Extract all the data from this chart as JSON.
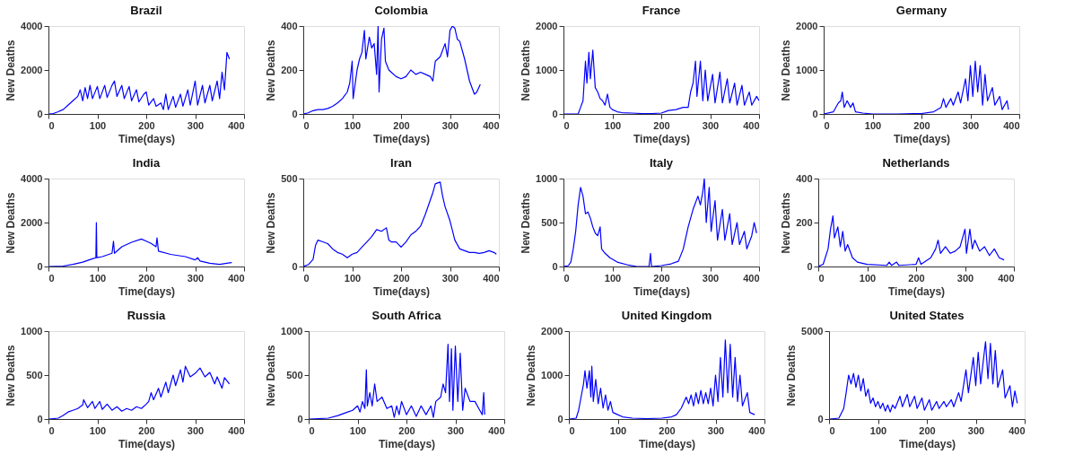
{
  "chart_data": [
    {
      "type": "line",
      "title": "Brazil",
      "xlabel": "Time(days)",
      "ylabel": "New Deaths",
      "color": "#0000ff",
      "xlim": [
        0,
        400
      ],
      "xticks": [
        0,
        100,
        200,
        300,
        400
      ],
      "ylim": [
        0,
        4000
      ],
      "yticks": [
        0,
        2000,
        4000
      ],
      "grid": false,
      "x": [
        0,
        10,
        20,
        30,
        40,
        50,
        60,
        65,
        70,
        75,
        80,
        85,
        90,
        100,
        105,
        115,
        120,
        130,
        135,
        140,
        150,
        155,
        165,
        170,
        180,
        185,
        195,
        200,
        205,
        215,
        220,
        230,
        235,
        240,
        245,
        255,
        260,
        270,
        275,
        285,
        290,
        300,
        305,
        315,
        320,
        330,
        335,
        345,
        350,
        355,
        360,
        365,
        370
      ],
      "values": [
        0,
        20,
        100,
        200,
        400,
        600,
        800,
        1100,
        600,
        1200,
        700,
        1300,
        700,
        1250,
        700,
        1300,
        750,
        1300,
        1500,
        800,
        1300,
        700,
        1250,
        600,
        1100,
        550,
        900,
        1000,
        400,
        700,
        350,
        500,
        200,
        900,
        200,
        800,
        300,
        900,
        350,
        1100,
        400,
        1500,
        400,
        1300,
        500,
        1300,
        600,
        1500,
        700,
        1900,
        1100,
        2800,
        2500
      ]
    },
    {
      "type": "line",
      "title": "Colombia",
      "xlabel": "Time(days)",
      "ylabel": "New Deaths",
      "color": "#0000ff",
      "xlim": [
        0,
        400
      ],
      "xticks": [
        0,
        100,
        200,
        300,
        400
      ],
      "ylim": [
        0,
        400
      ],
      "yticks": [
        0,
        200,
        400
      ],
      "grid": false,
      "x": [
        0,
        10,
        20,
        30,
        40,
        50,
        60,
        70,
        80,
        90,
        95,
        100,
        102,
        110,
        115,
        120,
        125,
        128,
        135,
        140,
        145,
        150,
        153,
        155,
        160,
        165,
        168,
        175,
        180,
        190,
        200,
        210,
        220,
        230,
        240,
        250,
        260,
        265,
        270,
        280,
        290,
        295,
        300,
        305,
        310,
        315,
        320,
        330,
        340,
        350,
        355,
        362
      ],
      "values": [
        0,
        5,
        15,
        20,
        20,
        25,
        35,
        50,
        70,
        100,
        140,
        240,
        70,
        200,
        250,
        280,
        380,
        250,
        350,
        300,
        320,
        180,
        400,
        100,
        340,
        390,
        240,
        200,
        190,
        170,
        160,
        170,
        200,
        180,
        190,
        180,
        170,
        150,
        240,
        260,
        320,
        260,
        380,
        400,
        390,
        340,
        330,
        250,
        150,
        90,
        100,
        135
      ]
    },
    {
      "type": "line",
      "title": "France",
      "xlabel": "Time(days)",
      "ylabel": "New Deaths",
      "color": "#0000ff",
      "xlim": [
        0,
        400
      ],
      "xticks": [
        0,
        100,
        200,
        300,
        400
      ],
      "ylim": [
        0,
        2000
      ],
      "yticks": [
        0,
        1000,
        2000
      ],
      "grid": false,
      "x": [
        0,
        30,
        35,
        40,
        45,
        48,
        52,
        55,
        60,
        65,
        70,
        75,
        80,
        85,
        90,
        95,
        100,
        110,
        120,
        140,
        160,
        180,
        200,
        215,
        230,
        245,
        255,
        260,
        265,
        270,
        273,
        280,
        285,
        290,
        295,
        305,
        310,
        320,
        325,
        335,
        340,
        350,
        355,
        365,
        370,
        380,
        385,
        395,
        400
      ],
      "values": [
        0,
        0,
        150,
        300,
        1200,
        700,
        1400,
        800,
        1450,
        600,
        500,
        350,
        300,
        200,
        450,
        150,
        100,
        50,
        30,
        20,
        10,
        10,
        20,
        80,
        100,
        150,
        150,
        500,
        700,
        1200,
        400,
        1200,
        300,
        1000,
        300,
        900,
        250,
        950,
        250,
        800,
        250,
        700,
        200,
        650,
        200,
        500,
        200,
        400,
        300
      ]
    },
    {
      "type": "line",
      "title": "Germany",
      "xlabel": "Time(days)",
      "ylabel": "New Deaths",
      "color": "#0000ff",
      "xlim": [
        0,
        400
      ],
      "xticks": [
        0,
        100,
        200,
        300,
        400
      ],
      "ylim": [
        0,
        2000
      ],
      "yticks": [
        0,
        1000,
        2000
      ],
      "grid": false,
      "x": [
        0,
        20,
        30,
        35,
        38,
        42,
        48,
        55,
        60,
        65,
        80,
        100,
        150,
        200,
        225,
        240,
        245,
        250,
        260,
        265,
        275,
        280,
        290,
        295,
        300,
        305,
        310,
        315,
        320,
        325,
        330,
        335,
        345,
        350,
        360,
        365,
        375,
        378
      ],
      "values": [
        0,
        50,
        250,
        300,
        500,
        150,
        300,
        150,
        250,
        50,
        20,
        0,
        0,
        10,
        50,
        150,
        350,
        150,
        350,
        200,
        500,
        250,
        800,
        300,
        1100,
        400,
        1200,
        500,
        1100,
        200,
        900,
        300,
        600,
        200,
        400,
        100,
        300,
        100
      ]
    },
    {
      "type": "line",
      "title": "India",
      "xlabel": "Time(days)",
      "ylabel": "New Deaths",
      "color": "#0000ff",
      "xlim": [
        0,
        400
      ],
      "xticks": [
        0,
        100,
        200,
        300,
        400
      ],
      "ylim": [
        0,
        4000
      ],
      "yticks": [
        0,
        2000,
        4000
      ],
      "grid": false,
      "x": [
        0,
        30,
        50,
        70,
        90,
        97,
        98,
        99,
        110,
        130,
        133,
        135,
        150,
        170,
        190,
        200,
        210,
        220,
        222,
        225,
        250,
        280,
        300,
        305,
        310,
        330,
        350,
        375
      ],
      "values": [
        0,
        20,
        100,
        200,
        350,
        400,
        2000,
        400,
        450,
        600,
        1150,
        600,
        900,
        1100,
        1250,
        1150,
        1050,
        900,
        1300,
        700,
        550,
        450,
        300,
        400,
        250,
        150,
        100,
        180
      ]
    },
    {
      "type": "line",
      "title": "Iran",
      "xlabel": "Time(days)",
      "ylabel": "New Deaths",
      "color": "#0000ff",
      "xlim": [
        0,
        400
      ],
      "xticks": [
        0,
        100,
        200,
        300,
        400
      ],
      "ylim": [
        0,
        500
      ],
      "yticks": [
        0,
        500
      ],
      "grid": false,
      "x": [
        0,
        10,
        20,
        25,
        30,
        40,
        50,
        60,
        70,
        80,
        90,
        100,
        110,
        120,
        130,
        140,
        150,
        160,
        170,
        175,
        180,
        190,
        200,
        210,
        220,
        230,
        240,
        250,
        260,
        265,
        270,
        280,
        285,
        290,
        300,
        310,
        320,
        330,
        340,
        350,
        360,
        370,
        380,
        390,
        395
      ],
      "values": [
        0,
        10,
        40,
        120,
        150,
        140,
        130,
        100,
        80,
        70,
        50,
        70,
        80,
        110,
        140,
        170,
        210,
        200,
        220,
        150,
        140,
        140,
        110,
        140,
        180,
        200,
        230,
        300,
        380,
        420,
        470,
        480,
        400,
        340,
        260,
        150,
        100,
        90,
        80,
        80,
        75,
        80,
        90,
        80,
        70
      ]
    },
    {
      "type": "line",
      "title": "Italy",
      "xlabel": "Time(days)",
      "ylabel": "New Deaths",
      "color": "#0000ff",
      "xlim": [
        0,
        400
      ],
      "xticks": [
        0,
        100,
        200,
        300,
        400
      ],
      "ylim": [
        0,
        1000
      ],
      "yticks": [
        0,
        500,
        1000
      ],
      "grid": false,
      "x": [
        0,
        10,
        15,
        20,
        25,
        30,
        35,
        40,
        45,
        50,
        55,
        60,
        65,
        70,
        75,
        78,
        85,
        95,
        110,
        130,
        150,
        175,
        178,
        180,
        200,
        220,
        235,
        245,
        255,
        265,
        275,
        280,
        285,
        288,
        292,
        298,
        302,
        310,
        315,
        325,
        330,
        340,
        345,
        355,
        360,
        370,
        375,
        385,
        390,
        395
      ],
      "values": [
        0,
        10,
        50,
        200,
        400,
        700,
        900,
        800,
        600,
        620,
        550,
        450,
        380,
        350,
        450,
        200,
        150,
        100,
        50,
        20,
        0,
        0,
        150,
        0,
        10,
        30,
        60,
        200,
        450,
        650,
        800,
        700,
        850,
        1000,
        500,
        900,
        400,
        750,
        300,
        650,
        300,
        600,
        250,
        500,
        250,
        400,
        200,
        350,
        500,
        380
      ]
    },
    {
      "type": "line",
      "title": "Netherlands",
      "xlabel": "Time(days)",
      "ylabel": "New Deaths",
      "color": "#0000ff",
      "xlim": [
        0,
        400
      ],
      "xticks": [
        0,
        100,
        200,
        300,
        400
      ],
      "ylim": [
        0,
        400
      ],
      "yticks": [
        0,
        200,
        400
      ],
      "grid": false,
      "x": [
        0,
        10,
        20,
        25,
        30,
        33,
        40,
        45,
        50,
        55,
        60,
        70,
        80,
        100,
        140,
        145,
        150,
        160,
        165,
        200,
        205,
        210,
        230,
        240,
        245,
        250,
        260,
        270,
        280,
        290,
        300,
        303,
        310,
        315,
        320,
        330,
        340,
        350,
        360,
        370,
        380
      ],
      "values": [
        0,
        10,
        80,
        170,
        230,
        130,
        180,
        90,
        160,
        70,
        100,
        40,
        20,
        10,
        5,
        20,
        5,
        20,
        5,
        10,
        40,
        10,
        40,
        80,
        120,
        60,
        90,
        60,
        70,
        90,
        170,
        60,
        170,
        80,
        120,
        70,
        90,
        50,
        80,
        40,
        30
      ]
    },
    {
      "type": "line",
      "title": "Russia",
      "xlabel": "Time(days)",
      "ylabel": "New Deaths",
      "color": "#0000ff",
      "xlim": [
        0,
        400
      ],
      "xticks": [
        0,
        100,
        200,
        300,
        400
      ],
      "ylim": [
        0,
        1000
      ],
      "yticks": [
        0,
        500,
        1000
      ],
      "grid": false,
      "x": [
        0,
        20,
        30,
        40,
        50,
        60,
        70,
        72,
        80,
        90,
        95,
        105,
        110,
        120,
        130,
        140,
        150,
        160,
        170,
        180,
        190,
        200,
        205,
        210,
        215,
        225,
        230,
        240,
        245,
        255,
        260,
        270,
        275,
        280,
        290,
        300,
        310,
        320,
        330,
        340,
        345,
        355,
        360,
        370
      ],
      "values": [
        0,
        10,
        40,
        80,
        100,
        120,
        160,
        220,
        130,
        200,
        120,
        200,
        110,
        170,
        100,
        140,
        90,
        120,
        100,
        140,
        120,
        170,
        200,
        300,
        220,
        350,
        250,
        420,
        300,
        500,
        380,
        560,
        420,
        600,
        480,
        520,
        580,
        480,
        530,
        400,
        480,
        350,
        470,
        400
      ]
    },
    {
      "type": "line",
      "title": "South Africa",
      "xlabel": "Time(days)",
      "ylabel": "New Deaths",
      "color": "#0000ff",
      "xlim": [
        0,
        400
      ],
      "xticks": [
        0,
        100,
        200,
        300,
        400
      ],
      "ylim": [
        0,
        1000
      ],
      "yticks": [
        0,
        500,
        1000
      ],
      "grid": false,
      "x": [
        0,
        40,
        60,
        70,
        80,
        90,
        100,
        105,
        110,
        115,
        118,
        120,
        125,
        130,
        135,
        140,
        150,
        160,
        170,
        175,
        180,
        185,
        190,
        200,
        210,
        220,
        230,
        240,
        250,
        255,
        260,
        270,
        275,
        280,
        285,
        288,
        292,
        295,
        300,
        305,
        310,
        315,
        320,
        330,
        340,
        350,
        355,
        358,
        360
      ],
      "values": [
        0,
        10,
        40,
        60,
        80,
        100,
        150,
        80,
        200,
        120,
        560,
        150,
        300,
        150,
        400,
        200,
        250,
        120,
        150,
        20,
        150,
        50,
        200,
        50,
        150,
        30,
        150,
        50,
        150,
        20,
        200,
        250,
        400,
        300,
        850,
        200,
        800,
        100,
        830,
        200,
        750,
        100,
        350,
        200,
        200,
        100,
        50,
        300,
        50
      ]
    },
    {
      "type": "line",
      "title": "United Kingdom",
      "xlabel": "Time(days)",
      "ylabel": "New Deaths",
      "color": "#0000ff",
      "xlim": [
        0,
        400
      ],
      "xticks": [
        0,
        100,
        200,
        300,
        400
      ],
      "ylim": [
        0,
        2000
      ],
      "yticks": [
        0,
        1000,
        2000
      ],
      "grid": false,
      "x": [
        0,
        15,
        20,
        25,
        30,
        33,
        37,
        42,
        45,
        47,
        50,
        55,
        60,
        65,
        70,
        75,
        80,
        85,
        90,
        100,
        110,
        130,
        160,
        190,
        210,
        220,
        230,
        240,
        245,
        250,
        255,
        260,
        265,
        270,
        275,
        280,
        285,
        290,
        295,
        300,
        305,
        310,
        315,
        320,
        325,
        330,
        335,
        340,
        345,
        350,
        355,
        365,
        370,
        380
      ],
      "values": [
        0,
        20,
        200,
        500,
        800,
        1100,
        700,
        1100,
        500,
        1200,
        400,
        900,
        350,
        700,
        250,
        550,
        200,
        400,
        150,
        100,
        50,
        20,
        10,
        20,
        50,
        100,
        250,
        500,
        350,
        550,
        300,
        600,
        350,
        650,
        350,
        600,
        350,
        700,
        300,
        1000,
        400,
        1400,
        500,
        1800,
        600,
        1700,
        500,
        1400,
        400,
        1000,
        300,
        600,
        150,
        100
      ]
    },
    {
      "type": "line",
      "title": "United States",
      "xlabel": "Time(days)",
      "ylabel": "New Deaths",
      "color": "#0000ff",
      "xlim": [
        0,
        400
      ],
      "xticks": [
        0,
        100,
        200,
        300,
        400
      ],
      "ylim": [
        0,
        5000
      ],
      "yticks": [
        0,
        5000
      ],
      "grid": false,
      "x": [
        0,
        20,
        30,
        35,
        40,
        45,
        50,
        55,
        60,
        65,
        70,
        75,
        80,
        85,
        90,
        95,
        100,
        105,
        110,
        115,
        120,
        125,
        130,
        135,
        145,
        150,
        160,
        165,
        175,
        180,
        190,
        195,
        205,
        210,
        220,
        225,
        235,
        240,
        250,
        255,
        265,
        270,
        280,
        285,
        295,
        300,
        305,
        310,
        320,
        325,
        330,
        335,
        340,
        345,
        355,
        360,
        370,
        375,
        380,
        385
      ],
      "values": [
        0,
        50,
        600,
        1500,
        2500,
        2000,
        2600,
        1800,
        2500,
        1600,
        2300,
        1300,
        1700,
        900,
        1200,
        700,
        1000,
        600,
        900,
        450,
        800,
        400,
        800,
        600,
        1300,
        700,
        1400,
        700,
        1300,
        600,
        1200,
        500,
        1100,
        500,
        1000,
        600,
        1000,
        700,
        1100,
        700,
        1500,
        1000,
        2800,
        1500,
        3500,
        1900,
        3800,
        2000,
        4400,
        2300,
        4300,
        2000,
        3900,
        1800,
        2800,
        1200,
        1900,
        700,
        1600,
        900
      ]
    }
  ]
}
